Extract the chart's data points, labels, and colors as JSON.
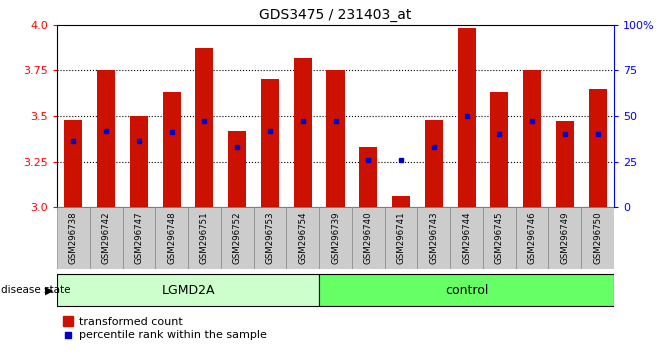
{
  "title": "GDS3475 / 231403_at",
  "samples": [
    "GSM296738",
    "GSM296742",
    "GSM296747",
    "GSM296748",
    "GSM296751",
    "GSM296752",
    "GSM296753",
    "GSM296754",
    "GSM296739",
    "GSM296740",
    "GSM296741",
    "GSM296743",
    "GSM296744",
    "GSM296745",
    "GSM296746",
    "GSM296749",
    "GSM296750"
  ],
  "bar_heights": [
    3.48,
    3.75,
    3.5,
    3.63,
    3.87,
    3.42,
    3.7,
    3.82,
    3.75,
    3.33,
    3.06,
    3.48,
    3.98,
    3.63,
    3.75,
    3.47,
    3.65
  ],
  "blue_dots": [
    3.36,
    3.42,
    3.36,
    3.41,
    3.47,
    3.33,
    3.42,
    3.47,
    3.47,
    3.26,
    3.26,
    3.33,
    3.5,
    3.4,
    3.47,
    3.4,
    3.4
  ],
  "ymin": 3.0,
  "ymax": 4.0,
  "yticks_major": [
    3.0,
    3.25,
    3.5,
    3.75,
    4.0
  ],
  "yticks_grid": [
    3.25,
    3.5,
    3.75
  ],
  "bar_color": "#CC1100",
  "dot_color": "#0000CC",
  "plot_bg_color": "#FFFFFF",
  "tick_label_color_left": "red",
  "tick_label_color_right": "blue",
  "grid_color": "#000000",
  "group_labels": [
    "LGMD2A",
    "control"
  ],
  "group_colors": [
    "#CCFFCC",
    "#66FF66"
  ],
  "group_split": 8,
  "n_total": 17,
  "disease_state_label": "disease state",
  "legend_items": [
    "transformed count",
    "percentile rank within the sample"
  ],
  "right_ytick_percents": [
    0,
    25,
    50,
    75,
    100
  ],
  "right_yticklabels": [
    "0",
    "25",
    "50",
    "75",
    "100%"
  ],
  "xlabel_box_color": "#CCCCCC",
  "bar_width": 0.55
}
